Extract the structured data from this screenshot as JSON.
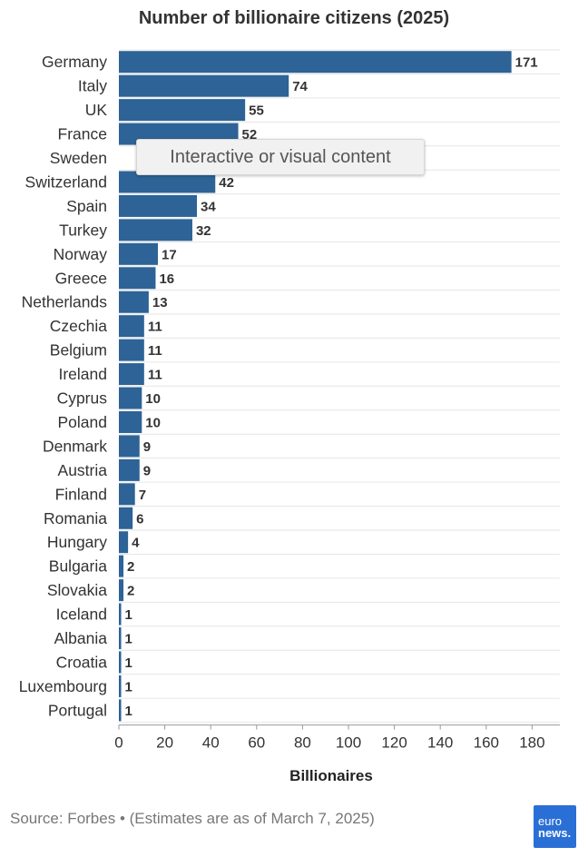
{
  "chart_data": {
    "type": "bar",
    "orientation": "horizontal",
    "title": "Number of billionaire citizens (2025)",
    "xlabel": "Billionaires",
    "ylabel": "",
    "categories": [
      "Germany",
      "Italy",
      "UK",
      "France",
      "Sweden",
      "Switzerland",
      "Spain",
      "Turkey",
      "Norway",
      "Greece",
      "Netherlands",
      "Czechia",
      "Belgium",
      "Ireland",
      "Cyprus",
      "Poland",
      "Denmark",
      "Austria",
      "Finland",
      "Romania",
      "Hungary",
      "Bulgaria",
      "Slovakia",
      "Iceland",
      "Albania",
      "Croatia",
      "Luxembourg",
      "Portugal"
    ],
    "values": [
      171,
      74,
      55,
      52,
      null,
      42,
      34,
      32,
      17,
      16,
      13,
      11,
      11,
      11,
      10,
      10,
      9,
      9,
      7,
      6,
      4,
      2,
      2,
      1,
      1,
      1,
      1,
      1
    ],
    "xlim": [
      0,
      190
    ],
    "x_ticks": [
      0,
      20,
      40,
      60,
      80,
      100,
      120,
      140,
      160,
      180
    ],
    "bar_color": "#2d6396",
    "grid": true
  },
  "overlay": {
    "text": "Interactive or visual content"
  },
  "source": "Source: Forbes • (Estimates are as of March 7, 2025)",
  "logo": {
    "line1": "euro",
    "line2": "news."
  }
}
